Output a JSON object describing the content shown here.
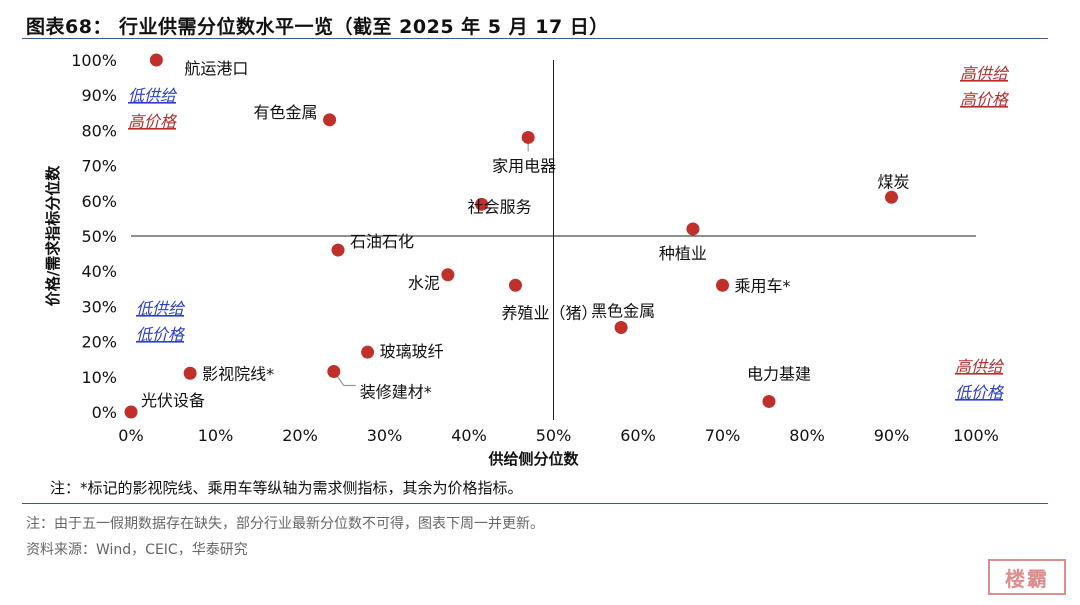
{
  "header": {
    "title": "图表68：  行业供需分位数水平一览（截至 2025 年 5 月 17 日）"
  },
  "footer": {
    "note": "注：由于五一假期数据存在缺失，部分行业最新分位数不可得，图表下周一并更新。",
    "source": "资料来源：Wind，CEIC，华泰研究"
  },
  "colors": {
    "point": "#c0302b",
    "high_label": "#b3302d",
    "low_label": "#2a3ec8",
    "rule": "#3c5a86"
  },
  "chart_data": {
    "type": "scatter",
    "xlabel": "供给侧分位数",
    "ylabel": "价格/需求指标分位数",
    "xlim": [
      0,
      100
    ],
    "ylim": [
      0,
      100
    ],
    "x_ticks": [
      "0%",
      "10%",
      "20%",
      "30%",
      "40%",
      "50%",
      "60%",
      "70%",
      "80%",
      "90%",
      "100%"
    ],
    "y_ticks": [
      "0%",
      "10%",
      "20%",
      "30%",
      "40%",
      "50%",
      "60%",
      "70%",
      "80%",
      "90%",
      "100%"
    ],
    "crosshair": {
      "x": 50,
      "y": 50
    },
    "points": [
      {
        "name": "航运港口",
        "x": 3,
        "y": 100
      },
      {
        "name": "有色金属",
        "x": 23.5,
        "y": 83
      },
      {
        "name": "家用电器",
        "x": 47,
        "y": 78
      },
      {
        "name": "社会服务",
        "x": 41.5,
        "y": 59
      },
      {
        "name": "煤炭",
        "x": 90,
        "y": 61
      },
      {
        "name": "种植业",
        "x": 66.5,
        "y": 52
      },
      {
        "name": "石油石化",
        "x": 24.5,
        "y": 46
      },
      {
        "name": "水泥",
        "x": 37.5,
        "y": 39
      },
      {
        "name": "养殖业（猪）",
        "x": 45.5,
        "y": 36
      },
      {
        "name": "乘用车*",
        "x": 70,
        "y": 36
      },
      {
        "name": "黑色金属",
        "x": 58,
        "y": 24
      },
      {
        "name": "玻璃玻纤",
        "x": 28,
        "y": 17
      },
      {
        "name": "影视院线*",
        "x": 7,
        "y": 11
      },
      {
        "name": "装修建材*",
        "x": 24,
        "y": 11.5
      },
      {
        "name": "电力基建",
        "x": 75.5,
        "y": 3
      },
      {
        "name": "光伏设备",
        "x": 0,
        "y": 0
      }
    ],
    "quadrant_labels": {
      "top_right": [
        "高供给",
        "高价格"
      ],
      "top_left": [
        "低供给",
        "高价格"
      ],
      "bottom_left": [
        "低供给",
        "低价格"
      ],
      "bottom_right": [
        "高供给",
        "低价格"
      ]
    },
    "annotation": "注：*标记的影视院线、乘用车等纵轴为需求侧指标，其余为价格指标。"
  }
}
